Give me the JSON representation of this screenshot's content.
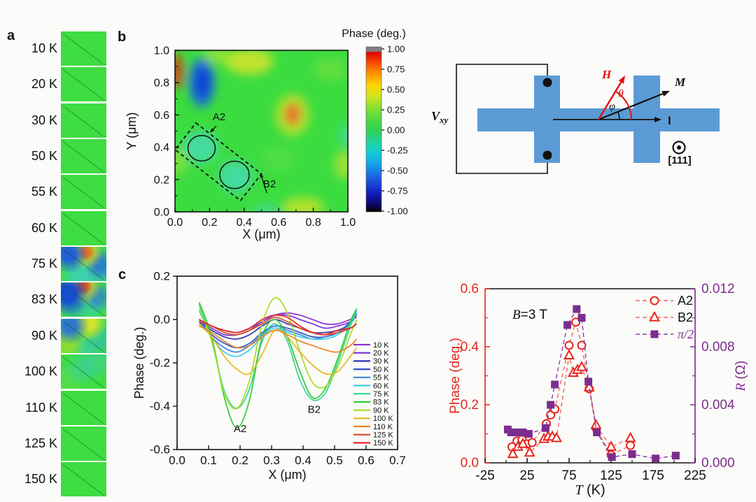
{
  "figure": {
    "panel_a": {
      "label": "a"
    },
    "panel_b": {
      "label": "b"
    },
    "panel_c": {
      "label": "c"
    },
    "schematic": {
      "vxy_main": "V",
      "vxy_sub": "xy",
      "field_label": "H",
      "magnetization_label": "M",
      "current_label": "I",
      "theta_label": "θ",
      "phi_label": "φ",
      "crystal_axis_label": "[111]",
      "bar_color": "#5b9bd5",
      "field_color": "#e01010"
    }
  },
  "chart_data": [
    {
      "id": "panel_a",
      "type": "heatmap",
      "title": "MFM phase maps vs temperature",
      "categories": [
        "10 K",
        "20 K",
        "30 K",
        "50 K",
        "55 K",
        "60 K",
        "75 K",
        "83 K",
        "90 K",
        "100 K",
        "110 K",
        "125 K",
        "150 K"
      ],
      "variants": [
        "plain",
        "plain",
        "plain",
        "plain",
        "plain",
        "plain",
        "v75",
        "v83",
        "v90",
        "v100",
        "plain",
        "plain",
        "plain"
      ]
    },
    {
      "id": "panel_b",
      "type": "heatmap",
      "xlabel": "X (μm)",
      "ylabel": "Y (μm)",
      "xlim": [
        0,
        1
      ],
      "ylim": [
        0,
        1
      ],
      "xticks": [
        "0.0",
        "0.2",
        "0.4",
        "0.6",
        "0.8",
        "1.0"
      ],
      "yticks": [
        "0.0",
        "0.2",
        "0.4",
        "0.6",
        "0.8",
        "1.0"
      ],
      "colorbar": {
        "title": "Phase (deg.)",
        "ticks": [
          "1.00",
          "0.75",
          "0.50",
          "0.25",
          "0.00",
          "-0.25",
          "-0.50",
          "-0.75",
          "-1.00"
        ],
        "range": [
          -1,
          1
        ],
        "stops": [
          [
            0,
            "#808080"
          ],
          [
            0.025,
            "#808080"
          ],
          [
            0.035,
            "#e00000"
          ],
          [
            0.09,
            "#f84400"
          ],
          [
            0.16,
            "#ff9000"
          ],
          [
            0.23,
            "#ffd400"
          ],
          [
            0.3,
            "#d2e41e"
          ],
          [
            0.38,
            "#7ae032"
          ],
          [
            0.47,
            "#3cd84a"
          ],
          [
            0.52,
            "#2ed060"
          ],
          [
            0.58,
            "#1ed4a0"
          ],
          [
            0.65,
            "#12c8d8"
          ],
          [
            0.72,
            "#189ae8"
          ],
          [
            0.8,
            "#1e5ae0"
          ],
          [
            0.88,
            "#1420c0"
          ],
          [
            0.95,
            "#0a0a70"
          ],
          [
            1,
            "#000000"
          ]
        ]
      },
      "annotations": [
        {
          "text": "A2",
          "tx": 0.255,
          "ty": 0.567,
          "ax": 0.202,
          "ay": 0.489
        },
        {
          "text": "B2",
          "tx": 0.547,
          "ty": 0.152,
          "ax": 0.494,
          "ay": 0.242
        }
      ],
      "regions": {
        "circles": [
          {
            "name": "A2",
            "cx": 0.154,
            "cy": 0.394,
            "r": 0.079
          },
          {
            "name": "B2",
            "cx": 0.344,
            "cy": 0.229,
            "r": 0.085
          }
        ],
        "dashed_rect": {
          "cx": 0.25,
          "cy": 0.31,
          "w": 0.48,
          "h": 0.21,
          "angle_deg": 38
        }
      },
      "base_color": "#3bdc40",
      "features": [
        {
          "x": 0.01,
          "y": 0.87,
          "rx": 0.035,
          "ry": 0.11,
          "c": "#e03010",
          "o": 0.9
        },
        {
          "x": 0.155,
          "y": 0.8,
          "rx": 0.075,
          "ry": 0.15,
          "c": "#1a63e8",
          "o": 0.9
        },
        {
          "x": 0.16,
          "y": 0.8,
          "rx": 0.04,
          "ry": 0.09,
          "c": "#0a3bd0",
          "o": 0.9
        },
        {
          "x": 0.43,
          "y": 0.93,
          "rx": 0.14,
          "ry": 0.08,
          "c": "#d8e428",
          "o": 0.85
        },
        {
          "x": 0.25,
          "y": 0.97,
          "rx": 0.08,
          "ry": 0.05,
          "c": "#bfe332",
          "o": 0.6
        },
        {
          "x": 0.68,
          "y": 0.6,
          "rx": 0.1,
          "ry": 0.13,
          "c": "#d8e428",
          "o": 0.7
        },
        {
          "x": 0.68,
          "y": 0.605,
          "rx": 0.045,
          "ry": 0.07,
          "c": "#f2622a",
          "o": 0.95
        },
        {
          "x": 0.15,
          "y": 0.4,
          "rx": 0.1,
          "ry": 0.1,
          "c": "#49d8c8",
          "o": 0.7
        },
        {
          "x": 0.35,
          "y": 0.22,
          "rx": 0.1,
          "ry": 0.1,
          "c": "#49d8c8",
          "o": 0.7
        },
        {
          "x": 0.74,
          "y": 0.03,
          "rx": 0.12,
          "ry": 0.06,
          "c": "#d8e428",
          "o": 0.75
        },
        {
          "x": 0.98,
          "y": 0.29,
          "rx": 0.06,
          "ry": 0.09,
          "c": "#cde436",
          "o": 0.65
        },
        {
          "x": 1.0,
          "y": 0.47,
          "rx": 0.05,
          "ry": 0.07,
          "c": "#49d8c8",
          "o": 0.6
        },
        {
          "x": 0.02,
          "y": 0.31,
          "rx": 0.05,
          "ry": 0.08,
          "c": "#b8e138",
          "o": 0.55
        },
        {
          "x": 0.53,
          "y": 0.0,
          "rx": 0.08,
          "ry": 0.05,
          "c": "#49d8c8",
          "o": 0.5
        },
        {
          "x": 0.9,
          "y": 0.88,
          "rx": 0.1,
          "ry": 0.07,
          "c": "#8fe03a",
          "o": 0.45
        },
        {
          "x": 0.6,
          "y": 0.33,
          "rx": 0.1,
          "ry": 0.08,
          "c": "#66e04a",
          "o": 0.45
        }
      ]
    },
    {
      "id": "panel_c",
      "type": "line",
      "xlabel": "X (μm)",
      "ylabel": "Phase (deg.)",
      "xlim": [
        0,
        0.7
      ],
      "ylim": [
        -0.6,
        0.2
      ],
      "xticks": [
        "0.0",
        "0.1",
        "0.2",
        "0.3",
        "0.4",
        "0.5",
        "0.6",
        "0.7"
      ],
      "yticks": [
        "0.2",
        "0.0",
        "-0.2",
        "-0.4",
        "-0.6"
      ],
      "legend_position": "right-inside",
      "x": [
        0.07,
        0.11,
        0.15,
        0.19,
        0.23,
        0.27,
        0.31,
        0.35,
        0.39,
        0.43,
        0.47,
        0.51,
        0.55,
        0.57
      ],
      "series": [
        {
          "name": "10 K",
          "color": "#9033cc",
          "y": [
            0.0,
            -0.03,
            -0.05,
            -0.06,
            -0.04,
            -0.01,
            0.02,
            0.03,
            0.02,
            0.0,
            -0.02,
            -0.02,
            0.0,
            0.01
          ]
        },
        {
          "name": "20 K",
          "color": "#7a2fd9",
          "y": [
            -0.01,
            -0.04,
            -0.07,
            -0.07,
            -0.05,
            -0.01,
            0.02,
            0.02,
            0.0,
            -0.02,
            -0.04,
            -0.03,
            -0.01,
            0.02
          ]
        },
        {
          "name": "30 K",
          "color": "#2d2fae",
          "y": [
            -0.01,
            -0.05,
            -0.08,
            -0.09,
            -0.07,
            -0.03,
            0.0,
            -0.02,
            -0.04,
            -0.06,
            -0.06,
            -0.05,
            -0.02,
            0.03
          ]
        },
        {
          "name": "50 K",
          "color": "#2a52cc",
          "y": [
            -0.01,
            -0.07,
            -0.11,
            -0.13,
            -0.11,
            -0.06,
            -0.03,
            -0.04,
            -0.06,
            -0.08,
            -0.08,
            -0.06,
            -0.01,
            0.03
          ]
        },
        {
          "name": "55 K",
          "color": "#3a86dc",
          "y": [
            0.0,
            -0.08,
            -0.13,
            -0.15,
            -0.12,
            -0.07,
            -0.03,
            -0.05,
            -0.07,
            -0.09,
            -0.08,
            -0.06,
            -0.02,
            0.03
          ]
        },
        {
          "name": "60 K",
          "color": "#40cce6",
          "y": [
            0.04,
            -0.08,
            -0.15,
            -0.17,
            -0.14,
            -0.08,
            -0.04,
            -0.06,
            -0.08,
            -0.09,
            -0.09,
            -0.07,
            -0.02,
            0.04
          ]
        },
        {
          "name": "75 K",
          "color": "#35d492",
          "y": [
            0.07,
            -0.1,
            -0.33,
            -0.41,
            -0.32,
            -0.1,
            -0.02,
            -0.1,
            -0.28,
            -0.37,
            -0.34,
            -0.2,
            -0.03,
            0.05
          ]
        },
        {
          "name": "83 K",
          "color": "#2ecb38",
          "y": [
            0.08,
            -0.08,
            -0.36,
            -0.5,
            -0.37,
            -0.08,
            0.0,
            -0.08,
            -0.24,
            -0.36,
            -0.32,
            -0.18,
            -0.01,
            0.05
          ]
        },
        {
          "name": "90 K",
          "color": "#a6dc28",
          "y": [
            0.05,
            -0.1,
            -0.34,
            -0.41,
            -0.28,
            -0.02,
            0.1,
            0.03,
            -0.15,
            -0.29,
            -0.31,
            -0.22,
            -0.07,
            0.0
          ]
        },
        {
          "name": "100 K",
          "color": "#e6b620",
          "y": [
            -0.02,
            -0.08,
            -0.17,
            -0.23,
            -0.25,
            -0.16,
            -0.05,
            -0.08,
            -0.15,
            -0.21,
            -0.25,
            -0.24,
            -0.17,
            -0.13
          ]
        },
        {
          "name": "110 K",
          "color": "#ec8424",
          "y": [
            -0.03,
            -0.06,
            -0.1,
            -0.13,
            -0.12,
            -0.08,
            -0.05,
            -0.07,
            -0.1,
            -0.12,
            -0.14,
            -0.15,
            -0.12,
            -0.09
          ]
        },
        {
          "name": "125 K",
          "color": "#d94a22",
          "y": [
            -0.01,
            -0.03,
            -0.06,
            -0.07,
            -0.05,
            -0.02,
            0.01,
            -0.01,
            -0.04,
            -0.06,
            -0.07,
            -0.06,
            -0.04,
            -0.02
          ]
        },
        {
          "name": "150 K",
          "color": "#e82722",
          "y": [
            0.0,
            -0.03,
            -0.05,
            -0.06,
            -0.04,
            0.0,
            0.02,
            0.01,
            -0.03,
            -0.06,
            -0.07,
            -0.05,
            -0.04,
            -0.02
          ]
        }
      ],
      "annotations": [
        {
          "text": "A2",
          "x": 0.2,
          "y": -0.52
        },
        {
          "text": "B2",
          "x": 0.435,
          "y": -0.43
        }
      ]
    },
    {
      "id": "panel_d",
      "type": "scatter-line",
      "xlabel_var": "T",
      "xlabel_rest": " (K)",
      "ylabel_left": "Phase (deg.)",
      "ylabel_right_var": "R",
      "ylabel_right_rest": " (Ω)",
      "annotation_var": "B",
      "annotation_rest": "=3 T",
      "xlim": [
        -25,
        225
      ],
      "ylim_left": [
        0,
        0.6
      ],
      "ylim_right": [
        0,
        0.012
      ],
      "xticks": [
        "-25",
        "25",
        "75",
        "125",
        "175",
        "225"
      ],
      "yticks_left": [
        "0.0",
        "0.2",
        "0.4",
        "0.6"
      ],
      "yticks_right": [
        "0.000",
        "0.004",
        "0.008",
        "0.012"
      ],
      "left_color": "#e8251c",
      "right_color": "#7b2d8e",
      "series": [
        {
          "name": "A2",
          "marker": "circle",
          "axis": "left",
          "color": "#e8251c",
          "line_color": "#ef6a5a",
          "text_color": "#111111",
          "points": [
            [
              7,
              0.055
            ],
            [
              13,
              0.075
            ],
            [
              19,
              0.08
            ],
            [
              25,
              0.065
            ],
            [
              31,
              0.07
            ],
            [
              48,
              0.135
            ],
            [
              53,
              0.165
            ],
            [
              58,
              0.185
            ],
            [
              75,
              0.405
            ],
            [
              83,
              0.485
            ],
            [
              90,
              0.405
            ],
            [
              99,
              0.255
            ],
            [
              107,
              0.12
            ],
            [
              125,
              0.027
            ],
            [
              148,
              0.06
            ]
          ]
        },
        {
          "name": "B2",
          "marker": "triangle",
          "axis": "left",
          "color": "#e8251c",
          "line_color": "#ef6a5a",
          "text_color": "#111111",
          "points": [
            [
              8,
              0.03
            ],
            [
              14,
              0.055
            ],
            [
              20,
              0.065
            ],
            [
              28,
              0.035
            ],
            [
              45,
              0.082
            ],
            [
              50,
              0.09
            ],
            [
              55,
              0.09
            ],
            [
              60,
              0.085
            ],
            [
              75,
              0.37
            ],
            [
              80,
              0.31
            ],
            [
              85,
              0.32
            ],
            [
              90,
              0.33
            ],
            [
              99,
              0.26
            ],
            [
              107,
              0.13
            ],
            [
              125,
              0.055
            ],
            [
              148,
              0.085
            ]
          ]
        },
        {
          "name": "π/2",
          "marker": "square",
          "axis": "right",
          "color": "#7b2d8e",
          "line_color": "#8b3aa0",
          "text_color": "#7b2d8e",
          "points": [
            [
              2,
              0.0023
            ],
            [
              6,
              0.0021
            ],
            [
              13,
              0.0021
            ],
            [
              20,
              0.0021
            ],
            [
              27,
              0.002
            ],
            [
              47,
              0.0024
            ],
            [
              53,
              0.004
            ],
            [
              58,
              0.0054
            ],
            [
              73,
              0.0095
            ],
            [
              84,
              0.0106
            ],
            [
              90,
              0.01
            ],
            [
              98,
              0.0056
            ],
            [
              108,
              0.0021
            ],
            [
              126,
              0.0004
            ],
            [
              150,
              0.0006
            ],
            [
              178,
              0.0003
            ],
            [
              202,
              0.0005
            ]
          ]
        }
      ]
    }
  ]
}
